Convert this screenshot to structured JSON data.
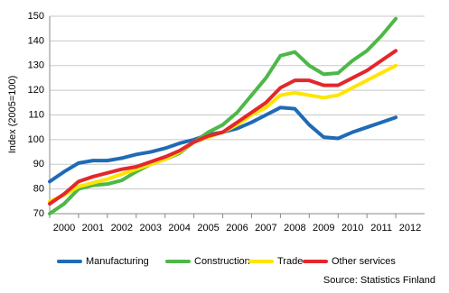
{
  "chart_data": {
    "type": "line",
    "y_label": "Index (2005=100)",
    "source": "Source: Statistics Finland",
    "x": [
      2000,
      2000.5,
      2001,
      2001.5,
      2002,
      2002.5,
      2003,
      2003.5,
      2004,
      2004.5,
      2005,
      2005.5,
      2006,
      2006.5,
      2007,
      2007.5,
      2008,
      2008.5,
      2009,
      2009.5,
      2010,
      2010.5,
      2011,
      2011.5,
      2012
    ],
    "series": [
      {
        "name": "Manufacturing",
        "color": "#1f6bb5",
        "values": [
          83,
          87,
          90.5,
          91.5,
          91.5,
          92.5,
          94,
          95,
          96.5,
          98.5,
          100,
          102,
          103,
          104.5,
          107,
          110,
          113,
          112.5,
          106,
          101,
          100.5,
          103,
          105,
          107,
          109
        ]
      },
      {
        "name": "Construction",
        "color": "#4db848",
        "values": [
          70,
          74,
          80,
          81.5,
          82,
          83.5,
          87,
          90,
          92,
          94.5,
          99,
          103,
          106,
          111,
          118,
          125,
          134,
          135.5,
          130,
          126.5,
          127,
          132,
          136,
          142,
          149
        ]
      },
      {
        "name": "Trade",
        "color": "#ffe500",
        "values": [
          75,
          77.5,
          81,
          82.5,
          84,
          86,
          88,
          90,
          92,
          95,
          99,
          101,
          103,
          106,
          110,
          113,
          118,
          119,
          118,
          117,
          118,
          121,
          124,
          127,
          130
        ]
      },
      {
        "name": "Other services",
        "color": "#e3272c",
        "values": [
          74,
          78,
          83,
          85,
          86.5,
          88,
          89,
          91,
          93,
          95.5,
          99,
          101.5,
          103,
          107,
          111,
          115,
          121,
          124,
          124,
          122,
          122,
          125,
          128,
          132,
          136
        ]
      }
    ],
    "xlim": [
      2000,
      2013
    ],
    "xticks": [
      2000,
      2001,
      2002,
      2003,
      2004,
      2005,
      2006,
      2007,
      2008,
      2009,
      2010,
      2011,
      2012
    ],
    "ylim": [
      70,
      150
    ],
    "yticks": [
      70,
      80,
      90,
      100,
      110,
      120,
      130,
      140,
      150
    ],
    "grid": true,
    "legend": "bottom"
  }
}
